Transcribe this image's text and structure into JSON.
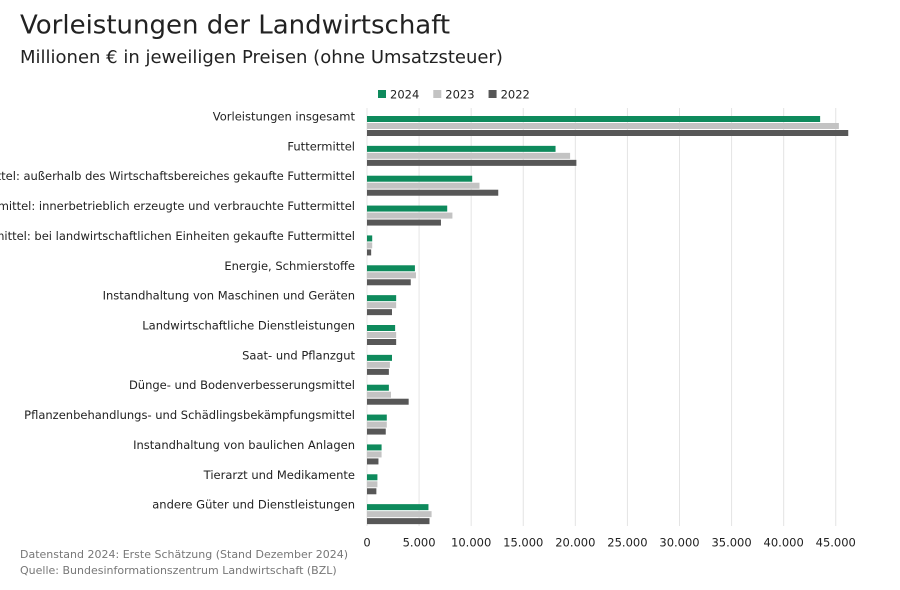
{
  "chart_data": {
    "type": "hbar",
    "title": "Vorleistungen der Landwirtschaft",
    "subtitle": "Millionen € in jeweiligen Preisen (ohne Umsatzsteuer)",
    "categories": [
      "Vorleistungen insgesamt",
      "Futtermittel",
      "Futtermittel: außerhalb des Wirtschaftsbereiches gekaufte Futtermittel",
      "Futtermittel: innerbetrieblich erzeugte und verbrauchte Futtermittel",
      "Futtermittel: bei landwirtschaftlichen Einheiten gekaufte Futtermittel",
      "Energie, Schmierstoffe",
      "Instandhaltung von Maschinen und Geräten",
      "Landwirtschaftliche Dienstleistungen",
      "Saat- und Pflanzgut",
      "Dünge- und Bodenverbesserungsmittel",
      "Pflanzenbehandlungs- und Schädlingsbekämpfungsmittel",
      "Instandhaltung von baulichen Anlagen",
      "Tierarzt und Medikamente",
      "andere Güter und Dienstleistungen"
    ],
    "series": [
      {
        "name": "2024",
        "color": "#0e8a5c",
        "values": [
          43500,
          18100,
          10100,
          7700,
          500,
          4600,
          2800,
          2700,
          2400,
          2100,
          1900,
          1400,
          1000,
          5900
        ]
      },
      {
        "name": "2023",
        "color": "#c3c3c3",
        "values": [
          45300,
          19500,
          10800,
          8200,
          500,
          4700,
          2800,
          2800,
          2200,
          2300,
          1900,
          1400,
          1000,
          6200
        ]
      },
      {
        "name": "2022",
        "color": "#575757",
        "values": [
          46200,
          20100,
          12600,
          7100,
          400,
          4200,
          2400,
          2800,
          2100,
          4000,
          1800,
          1100,
          900,
          6000
        ]
      }
    ],
    "xlim": [
      0,
      48000
    ],
    "xticks": [
      0,
      {
        "value": 5000,
        "label": "5.000"
      },
      {
        "value": 10000,
        "label": "10.000"
      },
      {
        "value": 15000,
        "label": "15.000"
      },
      {
        "value": 20000,
        "label": "20.000"
      },
      {
        "value": 25000,
        "label": "25.000"
      },
      {
        "value": 30000,
        "label": "30.000"
      },
      {
        "value": 35000,
        "label": "35.000"
      },
      {
        "value": 40000,
        "label": "40.000"
      },
      {
        "value": 45000,
        "label": "45.000"
      }
    ],
    "grid": true,
    "notes": [
      "Datenstand 2024: Erste Schätzung (Stand Dezember 2024)",
      "Quelle: Bundesinformationszentrum Landwirtschaft (BZL)"
    ]
  }
}
